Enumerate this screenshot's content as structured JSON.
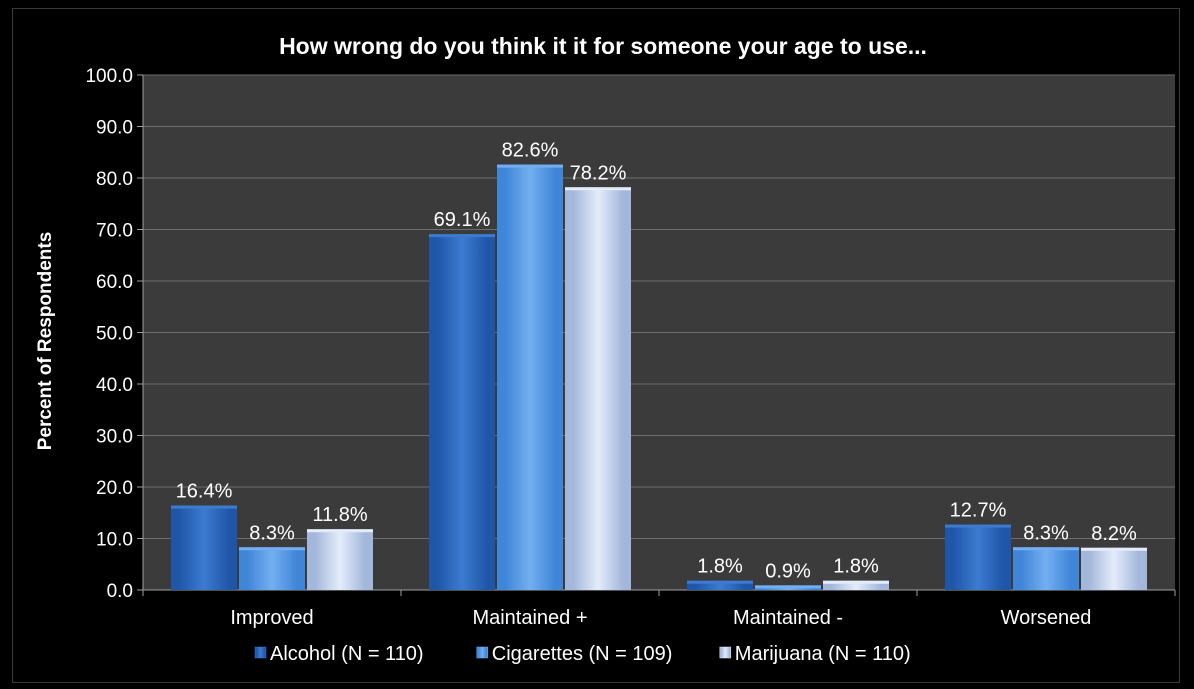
{
  "chart_data": {
    "type": "bar",
    "title": "How wrong do you think it it for someone your age to use...",
    "xlabel": "",
    "ylabel": "Percent of Respondents",
    "ylim": [
      0,
      100
    ],
    "yticks": [
      "0.0",
      "10.0",
      "20.0",
      "30.0",
      "40.0",
      "50.0",
      "60.0",
      "70.0",
      "80.0",
      "90.0",
      "100.0"
    ],
    "categories": [
      "Improved",
      "Maintained +",
      "Maintained -",
      "Worsened"
    ],
    "series": [
      {
        "name": "Alcohol  (N = 110)",
        "values": [
          16.4,
          69.1,
          1.8,
          12.7
        ],
        "labels": [
          "16.4%",
          "69.1%",
          "1.8%",
          "12.7%"
        ],
        "color": "#1f56a8",
        "edge": "#3d7bd0"
      },
      {
        "name": "Cigarettes (N = 109)",
        "values": [
          8.3,
          82.6,
          0.9,
          8.3
        ],
        "labels": [
          "8.3%",
          "82.6%",
          "0.9%",
          "8.3%"
        ],
        "color": "#3f86d8",
        "edge": "#74aef0"
      },
      {
        "name": "Marijuana (N = 110)",
        "values": [
          11.8,
          78.2,
          1.8,
          8.2
        ],
        "labels": [
          "11.8%",
          "78.2%",
          "1.8%",
          "8.2%"
        ],
        "color": "#a3b7da",
        "edge": "#e4ecfa"
      }
    ],
    "grid": true,
    "legend_position": "bottom",
    "plot_background": "#3b3b3b",
    "gridline_color": "#6e6e6e"
  }
}
